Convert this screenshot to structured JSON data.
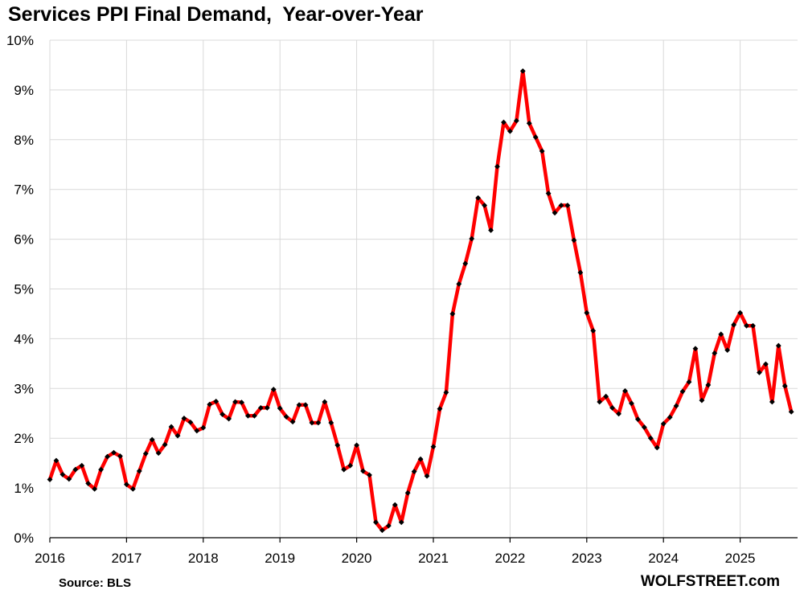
{
  "chart_data": {
    "type": "line",
    "title": "Services PPI Final Demand,  Year-over-Year",
    "xlabel": "",
    "ylabel": "",
    "ylim": [
      0,
      10
    ],
    "y_ticks": [
      "0%",
      "1%",
      "2%",
      "3%",
      "4%",
      "5%",
      "6%",
      "7%",
      "8%",
      "9%",
      "10%"
    ],
    "x_ticks": [
      "2016",
      "2017",
      "2018",
      "2019",
      "2020",
      "2021",
      "2022",
      "2023",
      "2024",
      "2025"
    ],
    "grid": true,
    "legend": "none",
    "series": [
      {
        "color": "#ff0000",
        "marker_color": "#000000",
        "points": [
          {
            "x": "2016-01",
            "y": 1.17
          },
          {
            "x": "2016-02",
            "y": 1.55
          },
          {
            "x": "2016-03",
            "y": 1.27
          },
          {
            "x": "2016-04",
            "y": 1.18
          },
          {
            "x": "2016-05",
            "y": 1.37
          },
          {
            "x": "2016-06",
            "y": 1.45
          },
          {
            "x": "2016-07",
            "y": 1.09
          },
          {
            "x": "2016-08",
            "y": 0.98
          },
          {
            "x": "2016-09",
            "y": 1.37
          },
          {
            "x": "2016-10",
            "y": 1.63
          },
          {
            "x": "2016-11",
            "y": 1.71
          },
          {
            "x": "2016-12",
            "y": 1.64
          },
          {
            "x": "2017-01",
            "y": 1.07
          },
          {
            "x": "2017-02",
            "y": 0.98
          },
          {
            "x": "2017-03",
            "y": 1.34
          },
          {
            "x": "2017-04",
            "y": 1.69
          },
          {
            "x": "2017-05",
            "y": 1.97
          },
          {
            "x": "2017-06",
            "y": 1.7
          },
          {
            "x": "2017-07",
            "y": 1.87
          },
          {
            "x": "2017-08",
            "y": 2.23
          },
          {
            "x": "2017-09",
            "y": 2.05
          },
          {
            "x": "2017-10",
            "y": 2.4
          },
          {
            "x": "2017-11",
            "y": 2.32
          },
          {
            "x": "2017-12",
            "y": 2.15
          },
          {
            "x": "2018-01",
            "y": 2.21
          },
          {
            "x": "2018-02",
            "y": 2.68
          },
          {
            "x": "2018-03",
            "y": 2.74
          },
          {
            "x": "2018-04",
            "y": 2.48
          },
          {
            "x": "2018-05",
            "y": 2.39
          },
          {
            "x": "2018-06",
            "y": 2.73
          },
          {
            "x": "2018-07",
            "y": 2.72
          },
          {
            "x": "2018-08",
            "y": 2.45
          },
          {
            "x": "2018-09",
            "y": 2.45
          },
          {
            "x": "2018-10",
            "y": 2.61
          },
          {
            "x": "2018-11",
            "y": 2.61
          },
          {
            "x": "2018-12",
            "y": 2.98
          },
          {
            "x": "2019-01",
            "y": 2.6
          },
          {
            "x": "2019-02",
            "y": 2.43
          },
          {
            "x": "2019-03",
            "y": 2.33
          },
          {
            "x": "2019-04",
            "y": 2.67
          },
          {
            "x": "2019-05",
            "y": 2.67
          },
          {
            "x": "2019-06",
            "y": 2.31
          },
          {
            "x": "2019-07",
            "y": 2.31
          },
          {
            "x": "2019-08",
            "y": 2.73
          },
          {
            "x": "2019-09",
            "y": 2.31
          },
          {
            "x": "2019-10",
            "y": 1.86
          },
          {
            "x": "2019-11",
            "y": 1.37
          },
          {
            "x": "2019-12",
            "y": 1.45
          },
          {
            "x": "2020-01",
            "y": 1.86
          },
          {
            "x": "2020-02",
            "y": 1.34
          },
          {
            "x": "2020-03",
            "y": 1.26
          },
          {
            "x": "2020-04",
            "y": 0.31
          },
          {
            "x": "2020-05",
            "y": 0.15
          },
          {
            "x": "2020-06",
            "y": 0.24
          },
          {
            "x": "2020-07",
            "y": 0.66
          },
          {
            "x": "2020-08",
            "y": 0.31
          },
          {
            "x": "2020-09",
            "y": 0.9
          },
          {
            "x": "2020-10",
            "y": 1.33
          },
          {
            "x": "2020-11",
            "y": 1.58
          },
          {
            "x": "2020-12",
            "y": 1.24
          },
          {
            "x": "2021-01",
            "y": 1.83
          },
          {
            "x": "2021-02",
            "y": 2.59
          },
          {
            "x": "2021-03",
            "y": 2.92
          },
          {
            "x": "2021-04",
            "y": 4.5
          },
          {
            "x": "2021-05",
            "y": 5.1
          },
          {
            "x": "2021-06",
            "y": 5.51
          },
          {
            "x": "2021-07",
            "y": 6.01
          },
          {
            "x": "2021-08",
            "y": 6.83
          },
          {
            "x": "2021-09",
            "y": 6.68
          },
          {
            "x": "2021-10",
            "y": 6.18
          },
          {
            "x": "2021-11",
            "y": 7.46
          },
          {
            "x": "2021-12",
            "y": 8.35
          },
          {
            "x": "2022-01",
            "y": 8.17
          },
          {
            "x": "2022-02",
            "y": 8.38
          },
          {
            "x": "2022-03",
            "y": 9.38
          },
          {
            "x": "2022-04",
            "y": 8.33
          },
          {
            "x": "2022-05",
            "y": 8.05
          },
          {
            "x": "2022-06",
            "y": 7.77
          },
          {
            "x": "2022-07",
            "y": 6.92
          },
          {
            "x": "2022-08",
            "y": 6.53
          },
          {
            "x": "2022-09",
            "y": 6.68
          },
          {
            "x": "2022-10",
            "y": 6.68
          },
          {
            "x": "2022-11",
            "y": 5.98
          },
          {
            "x": "2022-12",
            "y": 5.33
          },
          {
            "x": "2023-01",
            "y": 4.52
          },
          {
            "x": "2023-02",
            "y": 4.16
          },
          {
            "x": "2023-03",
            "y": 2.73
          },
          {
            "x": "2023-04",
            "y": 2.84
          },
          {
            "x": "2023-05",
            "y": 2.61
          },
          {
            "x": "2023-06",
            "y": 2.49
          },
          {
            "x": "2023-07",
            "y": 2.95
          },
          {
            "x": "2023-08",
            "y": 2.7
          },
          {
            "x": "2023-09",
            "y": 2.38
          },
          {
            "x": "2023-10",
            "y": 2.22
          },
          {
            "x": "2023-11",
            "y": 2.0
          },
          {
            "x": "2023-12",
            "y": 1.81
          },
          {
            "x": "2024-01",
            "y": 2.29
          },
          {
            "x": "2024-02",
            "y": 2.42
          },
          {
            "x": "2024-03",
            "y": 2.65
          },
          {
            "x": "2024-04",
            "y": 2.94
          },
          {
            "x": "2024-05",
            "y": 3.13
          },
          {
            "x": "2024-06",
            "y": 3.8
          },
          {
            "x": "2024-07",
            "y": 2.76
          },
          {
            "x": "2024-08",
            "y": 3.07
          },
          {
            "x": "2024-09",
            "y": 3.71
          },
          {
            "x": "2024-10",
            "y": 4.09
          },
          {
            "x": "2024-11",
            "y": 3.77
          },
          {
            "x": "2024-12",
            "y": 4.28
          },
          {
            "x": "2025-01",
            "y": 4.52
          },
          {
            "x": "2025-02",
            "y": 4.26
          },
          {
            "x": "2025-03",
            "y": 4.26
          },
          {
            "x": "2025-04",
            "y": 3.32
          },
          {
            "x": "2025-05",
            "y": 3.49
          },
          {
            "x": "2025-06",
            "y": 2.73
          },
          {
            "x": "2025-07",
            "y": 3.86
          },
          {
            "x": "2025-08",
            "y": 3.05
          },
          {
            "x": "2025-09",
            "y": 2.53
          }
        ]
      }
    ],
    "annotations": {
      "source": "Source: BLS",
      "brand": "WOLFSTREET.com"
    }
  }
}
